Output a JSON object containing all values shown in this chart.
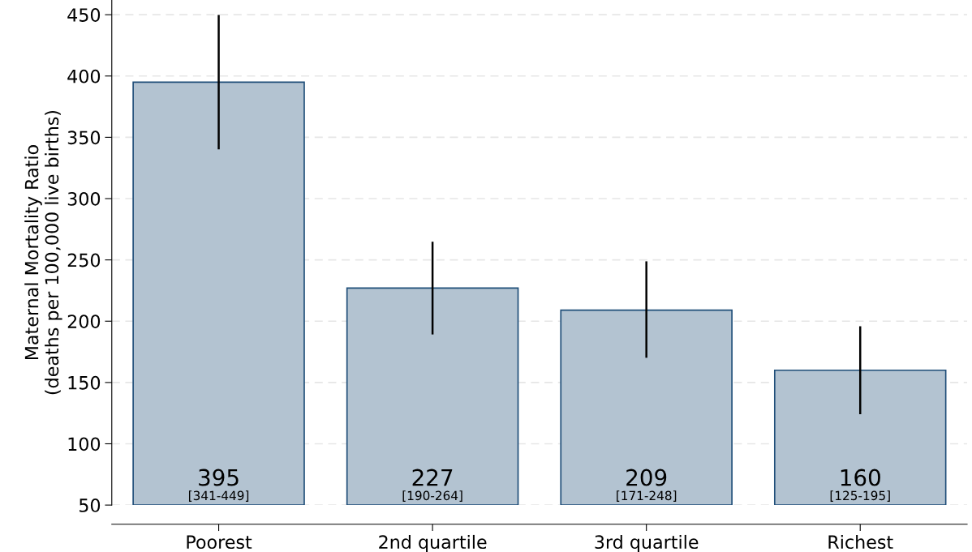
{
  "chart_data": {
    "type": "bar",
    "ylabel": "Maternal Mortality Ratio\n(deaths per 100,000 live births)",
    "categories": [
      "Poorest",
      "2nd quartile",
      "3rd quartile",
      "Richest"
    ],
    "values": [
      395,
      227,
      209,
      160
    ],
    "errors": [
      [
        341,
        449
      ],
      [
        190,
        264
      ],
      [
        171,
        248
      ],
      [
        125,
        195
      ]
    ],
    "color": "#b3c3d1",
    "ylim": [
      50,
      462
    ],
    "yticks": [
      50,
      100,
      150,
      200,
      250,
      300,
      350,
      400,
      450
    ],
    "grid": "y",
    "data_labels": true,
    "annotations": [
      {
        "text": "[341-449]",
        "x": "Poorest",
        "y": 50
      },
      {
        "text": "[190-264]",
        "x": "2nd quartile",
        "y": 50
      },
      {
        "text": "[171-248]",
        "x": "3rd quartile",
        "y": 50
      },
      {
        "text": "[125-195]",
        "x": "Richest",
        "y": 50
      }
    ]
  }
}
